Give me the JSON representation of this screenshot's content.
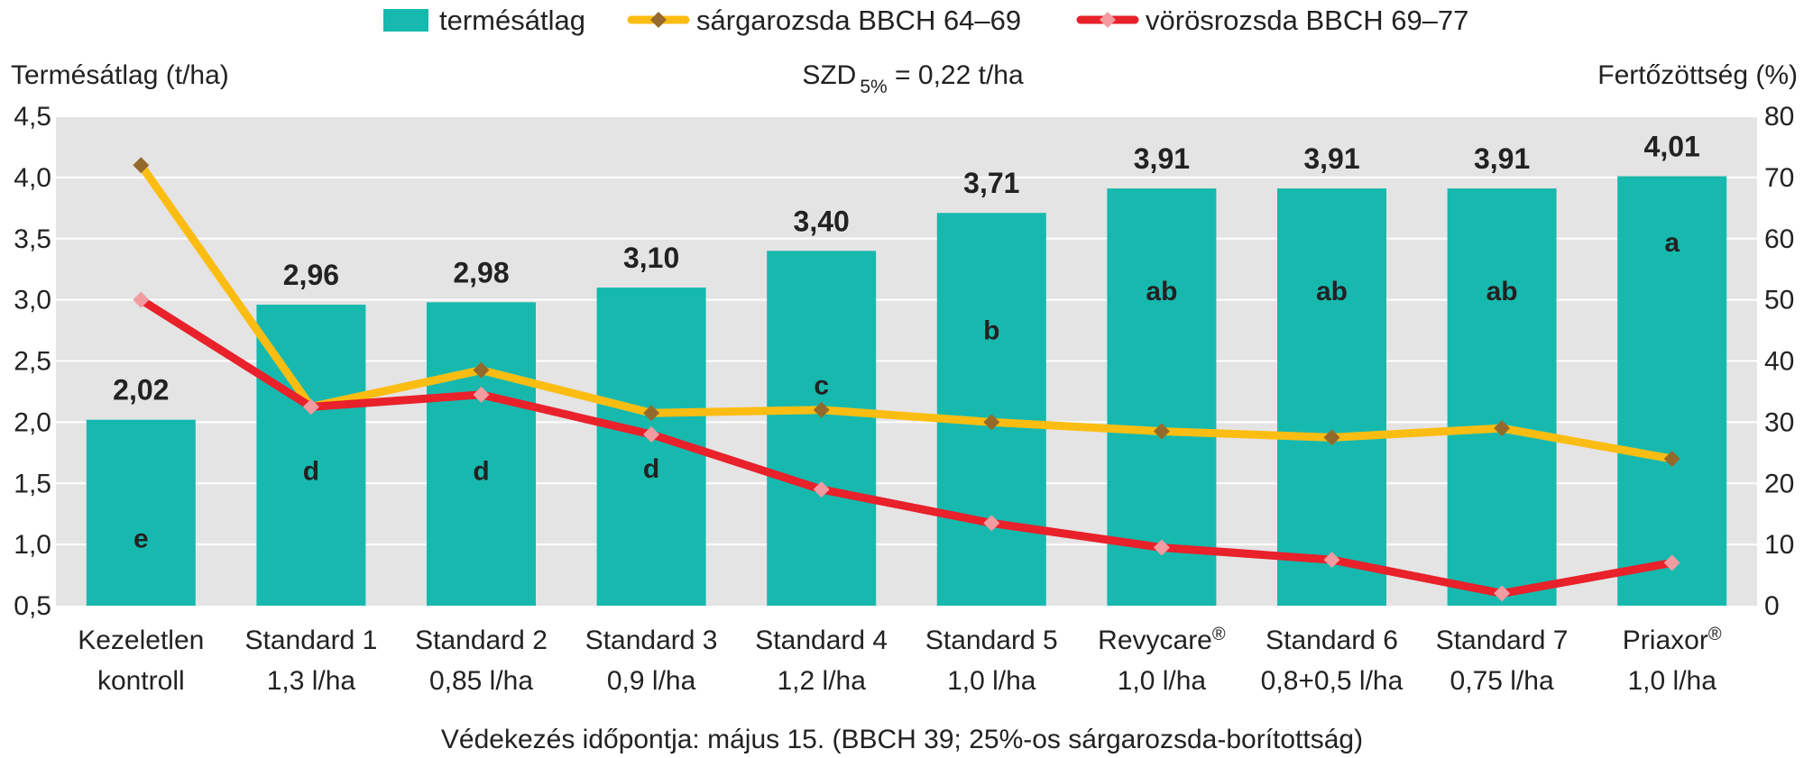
{
  "legend": [
    {
      "label": "termésátlag",
      "kind": "bar",
      "color": "#17b9ae"
    },
    {
      "label": "sárgarozsda BBCH 64–69",
      "kind": "line",
      "color": "#fcbd13",
      "marker_color": "#946a2c"
    },
    {
      "label": "vörösrozsda BBCH 69–77",
      "kind": "line",
      "color": "#e8212b",
      "marker_color": "#f29ba1"
    }
  ],
  "y_left_title": "Termésátlag (t/ha)",
  "y_right_title": "Fertőzöttség (%)",
  "szd": {
    "prefix": "SZD",
    "sub": "5%",
    "suffix": " = 0,22 t/ha"
  },
  "footnote": "Védekezés időpontja: május 15. (BBCH 39; 25%-os sárgarozsda-borítottság)",
  "chart_data": {
    "type": "bar",
    "categories": [
      {
        "line1": "Kezeletlen",
        "line2": "kontroll",
        "sup": ""
      },
      {
        "line1": "Standard 1",
        "line2": "1,3 l/ha",
        "sup": ""
      },
      {
        "line1": "Standard 2",
        "line2": "0,85 l/ha",
        "sup": ""
      },
      {
        "line1": "Standard 3",
        "line2": "0,9 l/ha",
        "sup": ""
      },
      {
        "line1": "Standard 4",
        "line2": "1,2 l/ha",
        "sup": ""
      },
      {
        "line1": "Standard 5",
        "line2": "1,0 l/ha",
        "sup": ""
      },
      {
        "line1": "Revycare",
        "line2": "1,0 l/ha",
        "sup": "®"
      },
      {
        "line1": "Standard 6",
        "line2": "0,8+0,5 l/ha",
        "sup": ""
      },
      {
        "line1": "Standard 7",
        "line2": "0,75 l/ha",
        "sup": ""
      },
      {
        "line1": "Priaxor",
        "line2": "1,0 l/ha",
        "sup": "®"
      }
    ],
    "bar_series": {
      "name": "termésátlag",
      "values": [
        2.02,
        2.96,
        2.98,
        3.1,
        3.4,
        3.71,
        3.91,
        3.91,
        3.91,
        4.01
      ],
      "labels": [
        "2,02",
        "2,96",
        "2,98",
        "3,10",
        "3,40",
        "3,71",
        "3,91",
        "3,91",
        "3,91",
        "4,01"
      ],
      "letters": [
        "e",
        "d",
        "d",
        "d",
        "c",
        "b",
        "ab",
        "ab",
        "ab",
        "a"
      ],
      "letter_values": [
        1.05,
        1.6,
        1.6,
        1.62,
        2.3,
        2.75,
        3.07,
        3.07,
        3.07,
        3.47
      ],
      "color": "#17b9ae"
    },
    "line_series": [
      {
        "name": "sárgarozsda BBCH 64–69",
        "values": [
          72,
          32.5,
          38.5,
          31.5,
          32,
          30,
          28.5,
          27.5,
          29,
          24
        ],
        "color": "#fcbd13",
        "marker_color": "#946a2c"
      },
      {
        "name": "vörösrozsda BBCH 69–77",
        "values": [
          50,
          32.5,
          34.5,
          28,
          19,
          13.5,
          9.5,
          7.5,
          2,
          7
        ],
        "color": "#e8212b",
        "marker_color": "#f29ba1"
      }
    ],
    "y_left": {
      "min": 0.5,
      "max": 4.5,
      "ticks": [
        "0,5",
        "1,0",
        "1,5",
        "2,0",
        "2,5",
        "3,0",
        "3,5",
        "4,0",
        "4,5"
      ]
    },
    "y_right": {
      "min": 0,
      "max": 80,
      "ticks": [
        "0",
        "10",
        "20",
        "30",
        "40",
        "50",
        "60",
        "70",
        "80"
      ]
    },
    "grid": true,
    "plot_background": "#e4e4e4",
    "legend_position": "top"
  }
}
